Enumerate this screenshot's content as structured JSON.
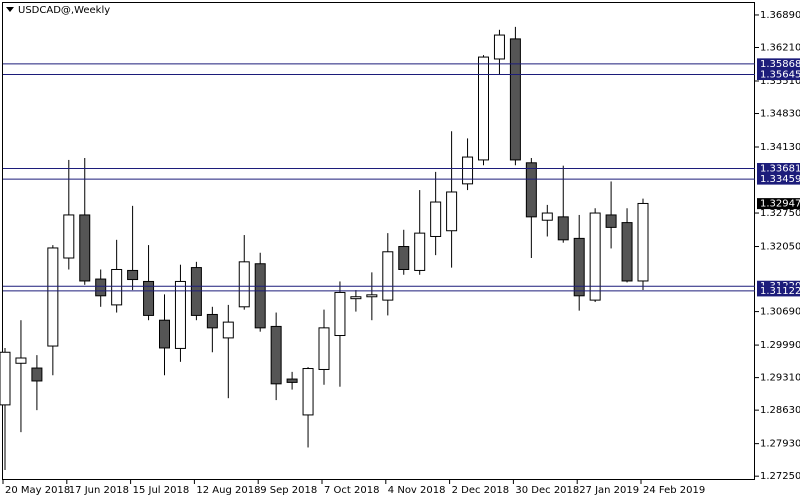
{
  "chart_data": {
    "type": "candlestick",
    "title": "USDCAD@,Weekly",
    "categories": [
      "20 May 2018",
      null,
      null,
      null,
      "17 Jun 2018",
      null,
      null,
      null,
      "15 Jul 2018",
      null,
      null,
      null,
      "12 Aug 2018",
      null,
      null,
      null,
      "9 Sep 2018",
      null,
      null,
      null,
      "7 Oct 2018",
      null,
      null,
      null,
      "4 Nov 2018",
      null,
      null,
      null,
      "2 Dec 2018",
      null,
      null,
      null,
      "30 Dec 2018",
      null,
      null,
      null,
      "27 Jan 2019",
      null,
      null,
      null,
      "24 Feb 2019"
    ],
    "open": [
      1.2874,
      1.2961,
      1.2951,
      1.2997,
      1.3181,
      1.3271,
      1.3137,
      1.3083,
      1.3155,
      1.3132,
      1.3051,
      1.2992,
      1.3161,
      1.3063,
      1.3014,
      1.3079,
      1.3169,
      1.3038,
      1.2928,
      1.2853,
      1.2948,
      1.3019,
      1.3096,
      1.31,
      1.3093,
      1.3205,
      1.3155,
      1.3226,
      1.3238,
      1.3336,
      1.3386,
      1.3597,
      1.3639,
      1.338,
      1.326,
      1.3267,
      1.3222,
      1.3093,
      1.3271,
      1.3255,
      1.3133
    ],
    "high": [
      1.2993,
      1.3051,
      1.2978,
      1.3208,
      1.3386,
      1.339,
      1.3157,
      1.3219,
      1.329,
      1.3208,
      1.3105,
      1.3167,
      1.3173,
      1.3079,
      1.3083,
      1.3229,
      1.3192,
      1.3067,
      1.2943,
      1.2953,
      1.3073,
      1.3132,
      1.3114,
      1.3151,
      1.3233,
      1.324,
      1.3323,
      1.3361,
      1.3446,
      1.3431,
      1.3605,
      1.3658,
      1.3664,
      1.339,
      1.3292,
      1.3374,
      1.3271,
      1.3285,
      1.3341,
      1.3285,
      1.3305
    ],
    "low": [
      1.2738,
      1.2817,
      1.2863,
      1.2936,
      1.3157,
      1.3125,
      1.3079,
      1.3067,
      1.3114,
      1.3051,
      1.2936,
      1.2964,
      1.3051,
      1.2984,
      1.2888,
      1.3073,
      1.3027,
      1.2884,
      1.2906,
      1.2785,
      1.2916,
      1.2912,
      1.3069,
      1.3051,
      1.3061,
      1.3146,
      1.3146,
      1.3187,
      1.3161,
      1.3323,
      1.3375,
      1.3564,
      1.3375,
      1.3181,
      1.3226,
      1.3213,
      1.3071,
      1.3089,
      1.3201,
      1.313,
      1.3114
    ],
    "close": [
      1.2984,
      1.2972,
      1.2924,
      1.3202,
      1.3271,
      1.3133,
      1.3102,
      1.3157,
      1.3136,
      1.3061,
      1.2993,
      1.3132,
      1.3061,
      1.3035,
      1.3047,
      1.3173,
      1.3035,
      1.2918,
      1.2921,
      1.295,
      1.3035,
      1.3109,
      1.31,
      1.3104,
      1.3194,
      1.3157,
      1.3233,
      1.3298,
      1.3319,
      1.3392,
      1.3601,
      1.3647,
      1.3386,
      1.3267,
      1.3275,
      1.3219,
      1.3102,
      1.3275,
      1.3245,
      1.3133,
      1.3295
    ],
    "up_color": "#ffffff",
    "down_color": "#555555",
    "line_color": "#1c1c7a",
    "hlines": [
      1.35868,
      1.35645,
      1.33681,
      1.33459,
      {
        "value": 1.3122,
        "label": "1.31220"
      },
      1.31122
    ],
    "last_price": 1.32947,
    "ylim": [
      1.2717,
      1.3714
    ],
    "yticks": [
      {
        "value": 1.3689,
        "label": "1.36890"
      },
      {
        "value": 1.3621,
        "label": "1.36210"
      },
      {
        "value": 1.3551,
        "label": "1.35510"
      },
      {
        "value": 1.3483,
        "label": "1.34830"
      },
      {
        "value": 1.3413,
        "label": "1.34130"
      },
      {
        "value": 1.3275,
        "label": "1.32750"
      },
      {
        "value": 1.3205,
        "label": "1.32050"
      },
      {
        "value": 1.3069,
        "label": "1.30690"
      },
      {
        "value": 1.2999,
        "label": "1.29990"
      },
      {
        "value": 1.2931,
        "label": "1.29310"
      },
      {
        "value": 1.2863,
        "label": "1.28630"
      },
      {
        "value": 1.2793,
        "label": "1.27930"
      },
      {
        "value": 1.2725,
        "label": "1.27250"
      }
    ]
  }
}
